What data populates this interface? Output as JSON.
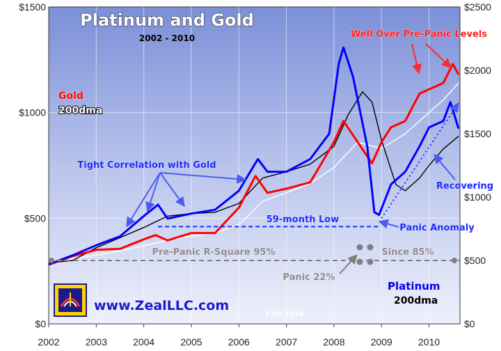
{
  "chart_data": {
    "type": "line",
    "title": "Platinum and Gold",
    "subtitle": "2002 - 2010",
    "date_stamp": "7.28.2010",
    "website": "www.ZealLLC.com",
    "x_ticks": [
      "2002",
      "2003",
      "2004",
      "2005",
      "2006",
      "2007",
      "2008",
      "2009",
      "2010"
    ],
    "y_left": {
      "ticks": [
        "$0",
        "$500",
        "$1000",
        "$1500"
      ],
      "ylim": [
        0,
        1500
      ]
    },
    "y_right": {
      "ticks": [
        "$0",
        "$500",
        "$1000",
        "$1500",
        "$2000",
        "$2500"
      ],
      "ylim": [
        0,
        2500
      ]
    },
    "xlim": [
      2002.0,
      2010.65
    ],
    "legend": {
      "left": {
        "series": "Gold",
        "ma": "200dma",
        "placement": "left"
      },
      "right": {
        "series": "Platinum",
        "ma": "200dma",
        "placement": "bottom-right"
      }
    },
    "colors": {
      "gold": "#ff0000",
      "platinum": "#0000ff",
      "gold_ma": "#ffffff",
      "platinum_ma": "#000000",
      "annotation_blue": "#0000ee",
      "annotation_red": "#ff0000",
      "annotation_gray": "#808080"
    },
    "series": [
      {
        "name": "Gold",
        "axis": "left",
        "x": [
          2002.0,
          2002.5,
          2003.0,
          2003.5,
          2004.0,
          2004.25,
          2004.5,
          2005.0,
          2005.5,
          2006.0,
          2006.35,
          2006.6,
          2007.0,
          2007.5,
          2008.0,
          2008.2,
          2008.5,
          2008.8,
          2009.0,
          2009.2,
          2009.5,
          2009.8,
          2010.0,
          2010.3,
          2010.5,
          2010.62
        ],
        "values": [
          280,
          320,
          350,
          355,
          400,
          420,
          395,
          430,
          430,
          550,
          700,
          620,
          640,
          670,
          860,
          960,
          860,
          760,
          860,
          930,
          960,
          1090,
          1110,
          1140,
          1230,
          1180
        ]
      },
      {
        "name": "Gold 200dma",
        "axis": "left",
        "x": [
          2002.0,
          2002.5,
          2003.0,
          2003.5,
          2004.0,
          2004.5,
          2005.0,
          2005.5,
          2006.0,
          2006.5,
          2007.0,
          2007.5,
          2008.0,
          2008.5,
          2009.0,
          2009.5,
          2010.0,
          2010.3,
          2010.62
        ],
        "values": [
          290,
          310,
          325,
          345,
          370,
          395,
          415,
          430,
          470,
          580,
          620,
          665,
          740,
          860,
          830,
          900,
          1000,
          1060,
          1140
        ]
      },
      {
        "name": "Platinum",
        "axis": "right",
        "x": [
          2002.0,
          2002.5,
          2003.0,
          2003.5,
          2004.0,
          2004.3,
          2004.5,
          2005.0,
          2005.5,
          2006.0,
          2006.4,
          2006.6,
          2007.0,
          2007.5,
          2007.9,
          2008.1,
          2008.2,
          2008.4,
          2008.7,
          2008.85,
          2008.95,
          2009.2,
          2009.5,
          2009.8,
          2010.0,
          2010.3,
          2010.45,
          2010.62
        ],
        "values": [
          470,
          540,
          620,
          690,
          850,
          940,
          830,
          870,
          900,
          1050,
          1300,
          1200,
          1200,
          1300,
          1500,
          2050,
          2180,
          1950,
          1400,
          880,
          860,
          1100,
          1200,
          1400,
          1550,
          1600,
          1750,
          1540
        ]
      },
      {
        "name": "Platinum 200dma",
        "axis": "right",
        "x": [
          2002.0,
          2002.5,
          2003.0,
          2003.5,
          2004.0,
          2004.5,
          2005.0,
          2005.5,
          2006.0,
          2006.5,
          2007.0,
          2007.5,
          2008.0,
          2008.3,
          2008.6,
          2008.8,
          2009.0,
          2009.3,
          2009.5,
          2009.8,
          2010.0,
          2010.3,
          2010.62
        ],
        "values": [
          480,
          500,
          600,
          680,
          760,
          850,
          870,
          880,
          950,
          1150,
          1200,
          1260,
          1400,
          1650,
          1830,
          1750,
          1450,
          1100,
          1050,
          1150,
          1250,
          1380,
          1480
        ]
      }
    ],
    "annotations": [
      {
        "text": "Well Over Pre-Panic Levels",
        "color": "red"
      },
      {
        "text": "Tight Correlation with Gold",
        "color": "blue"
      },
      {
        "text": "59-month Low",
        "color": "blue"
      },
      {
        "text": "Panic Anomaly",
        "color": "blue"
      },
      {
        "text": "Recovering",
        "color": "blue"
      },
      {
        "text": "Pre-Panic R-Square 95%",
        "color": "gray"
      },
      {
        "text": "Since 85%",
        "color": "gray"
      },
      {
        "text": "Panic 22%",
        "color": "gray"
      }
    ],
    "low_level": 500,
    "pre_panic_level": 300
  }
}
